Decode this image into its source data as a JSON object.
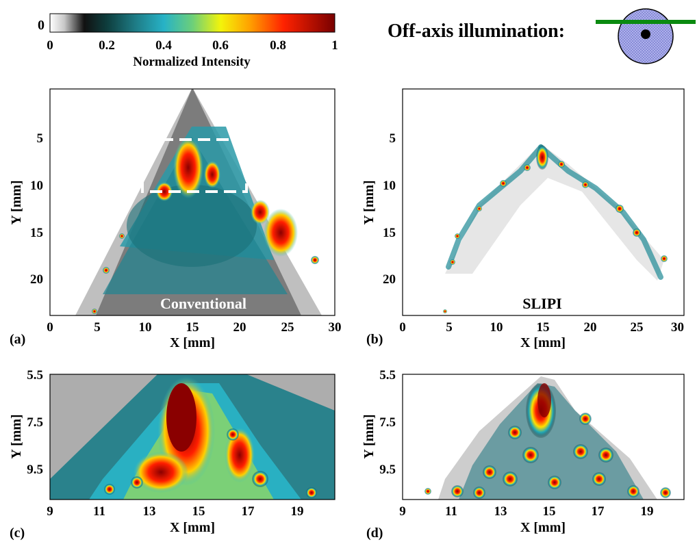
{
  "colorbar": {
    "zero_label": "0",
    "ticks": [
      "0",
      "0.2",
      "0.4",
      "0.6",
      "0.8",
      "1"
    ],
    "label": "Normalized Intensity",
    "colors": [
      "#ffffff",
      "#b0b0b0",
      "#505050",
      "#101010",
      "#0b3b3b",
      "#1f7f88",
      "#26b3c6",
      "#6cd07a",
      "#ffff00",
      "#ff9a00",
      "#ff2000",
      "#7a0000"
    ]
  },
  "illumination": {
    "title": "Off-axis illumination:",
    "circle_fill": "#a9acec",
    "sheet_color": "#0a8a10"
  },
  "panels": {
    "a": {
      "tag": "(a)",
      "inset_label": "Conventional",
      "x_label": "X [mm]",
      "y_label": "Y [mm]",
      "x_ticks": [
        "0",
        "5",
        "10",
        "15",
        "20",
        "25",
        "30"
      ],
      "y_ticks": [
        "5",
        "10",
        "15",
        "20"
      ]
    },
    "b": {
      "tag": "(b)",
      "inset_label": "SLIPI",
      "x_label": "X [mm]",
      "y_label": "Y [mm]",
      "x_ticks": [
        "0",
        "5",
        "10",
        "15",
        "20",
        "25",
        "30"
      ],
      "y_ticks": [
        "5",
        "10",
        "15",
        "20"
      ]
    },
    "c": {
      "tag": "(c)",
      "x_label": "X [mm]",
      "y_label": "Y [mm]",
      "x_ticks": [
        "9",
        "11",
        "13",
        "15",
        "17",
        "19"
      ],
      "y_ticks": [
        "5.5",
        "7.5",
        "9.5"
      ]
    },
    "d": {
      "tag": "(d)",
      "x_label": "X [mm]",
      "y_label": "Y [mm]",
      "x_ticks": [
        "9",
        "11",
        "13",
        "15",
        "17",
        "19"
      ],
      "y_ticks": [
        "5.5",
        "7.5",
        "9.5"
      ]
    }
  }
}
